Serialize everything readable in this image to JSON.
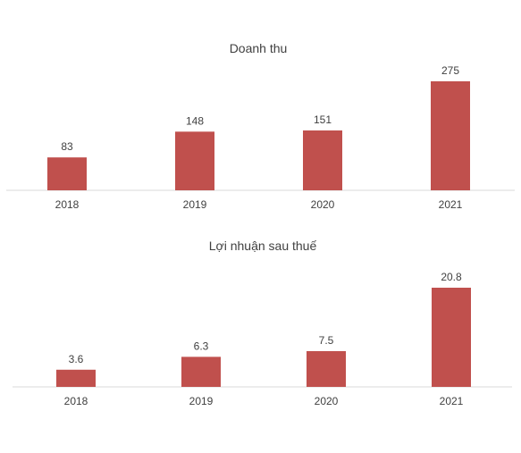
{
  "chart_data": [
    {
      "type": "bar",
      "title": "Doanh thu",
      "xlabel": "",
      "ylabel": "",
      "categories": [
        "2018",
        "2019",
        "2020",
        "2021"
      ],
      "values": [
        83,
        148,
        151,
        275
      ],
      "data_labels": [
        "83",
        "148",
        "151",
        "275"
      ],
      "ylim": [
        0,
        275
      ],
      "grid": false,
      "legend": "none",
      "bar_color": "#c0504d",
      "axis_color": "#d9d9d9"
    },
    {
      "type": "bar",
      "title": "Lợi nhuận sau thuế",
      "xlabel": "",
      "ylabel": "",
      "categories": [
        "2018",
        "2019",
        "2020",
        "2021"
      ],
      "values": [
        3.6,
        6.3,
        7.5,
        20.8
      ],
      "data_labels": [
        "3.6",
        "6.3",
        "7.5",
        "20.8"
      ],
      "ylim": [
        0,
        20.8
      ],
      "grid": false,
      "legend": "none",
      "bar_color": "#c0504d",
      "axis_color": "#d9d9d9"
    }
  ]
}
